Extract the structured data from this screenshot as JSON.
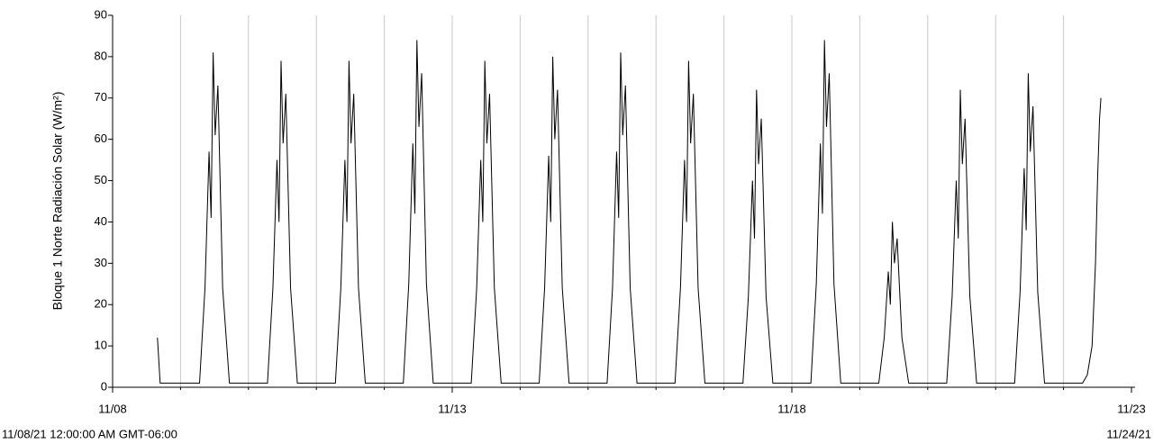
{
  "chart_data": {
    "type": "line",
    "y_label": "Bloque 1 Norte Radiación Solar (W/m²)",
    "start_label": "11/08/21 12:00:00 AM GMT-06:00",
    "end_label": "11/24/21",
    "xlim": [
      0,
      15
    ],
    "xticks": [
      {
        "value": 0,
        "label": "11/08"
      },
      {
        "value": 5,
        "label": "11/13"
      },
      {
        "value": 10,
        "label": "11/18"
      },
      {
        "value": 15,
        "label": "11/23"
      }
    ],
    "xminorticks": [
      1,
      2,
      3,
      4,
      6,
      7,
      8,
      9,
      11,
      12,
      13,
      14
    ],
    "ylim": [
      0,
      90
    ],
    "yticks": [
      0,
      10,
      20,
      30,
      40,
      50,
      60,
      70,
      80,
      90
    ],
    "grid": true,
    "x": [
      0.66,
      0.7,
      1.28,
      1.36,
      1.42,
      1.45,
      1.48,
      1.51,
      1.55,
      1.62,
      1.72,
      2.28,
      2.36,
      2.42,
      2.45,
      2.48,
      2.51,
      2.55,
      2.62,
      2.72,
      3.28,
      3.36,
      3.42,
      3.45,
      3.48,
      3.51,
      3.55,
      3.62,
      3.72,
      4.28,
      4.36,
      4.42,
      4.45,
      4.48,
      4.51,
      4.55,
      4.62,
      4.72,
      5.28,
      5.36,
      5.42,
      5.45,
      5.48,
      5.51,
      5.55,
      5.62,
      5.72,
      6.28,
      6.36,
      6.42,
      6.45,
      6.48,
      6.51,
      6.55,
      6.62,
      6.72,
      7.28,
      7.36,
      7.42,
      7.45,
      7.48,
      7.51,
      7.55,
      7.62,
      7.72,
      8.28,
      8.36,
      8.42,
      8.45,
      8.48,
      8.51,
      8.55,
      8.62,
      8.72,
      9.28,
      9.36,
      9.42,
      9.45,
      9.48,
      9.51,
      9.55,
      9.62,
      9.72,
      10.28,
      10.36,
      10.42,
      10.45,
      10.48,
      10.51,
      10.55,
      10.62,
      10.72,
      11.28,
      11.36,
      11.42,
      11.45,
      11.48,
      11.51,
      11.55,
      11.62,
      11.72,
      12.28,
      12.36,
      12.42,
      12.45,
      12.48,
      12.51,
      12.55,
      12.62,
      12.72,
      13.28,
      13.36,
      13.42,
      13.45,
      13.48,
      13.51,
      13.55,
      13.62,
      13.72,
      14.28,
      14.35,
      14.42,
      14.47,
      14.5,
      14.53,
      14.55
    ],
    "series": [
      {
        "color": "#000000",
        "values": [
          12,
          1,
          1,
          24,
          57,
          41,
          81,
          61,
          73,
          24,
          1,
          1,
          24,
          55,
          40,
          79,
          59,
          71,
          24,
          1,
          1,
          24,
          55,
          40,
          79,
          59,
          71,
          24,
          1,
          1,
          25,
          59,
          42,
          84,
          63,
          76,
          25,
          1,
          1,
          24,
          55,
          40,
          79,
          59,
          71,
          24,
          1,
          1,
          24,
          56,
          40,
          80,
          60,
          72,
          24,
          1,
          1,
          24,
          57,
          41,
          81,
          61,
          73,
          24,
          1,
          1,
          24,
          55,
          40,
          79,
          59,
          71,
          24,
          1,
          1,
          22,
          50,
          36,
          72,
          54,
          65,
          22,
          1,
          1,
          25,
          59,
          42,
          84,
          63,
          76,
          25,
          1,
          1,
          12,
          28,
          20,
          40,
          30,
          36,
          12,
          1,
          1,
          22,
          50,
          36,
          72,
          54,
          65,
          22,
          1,
          1,
          23,
          53,
          38,
          76,
          57,
          68,
          23,
          1,
          1,
          3,
          10,
          30,
          50,
          65,
          70
        ]
      }
    ]
  }
}
